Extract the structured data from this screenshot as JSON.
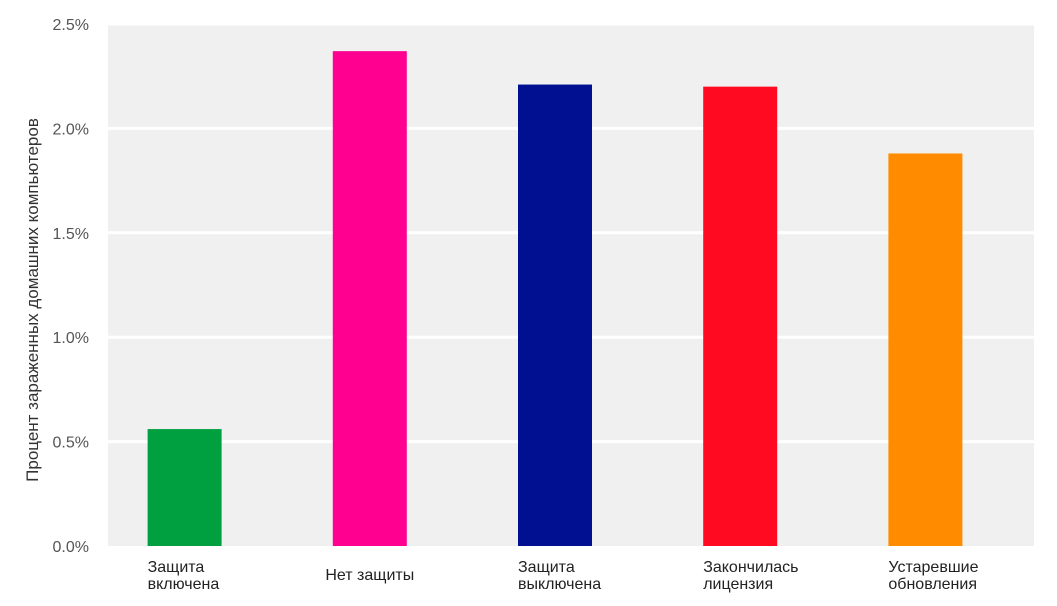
{
  "chart_data": {
    "type": "bar",
    "title": "",
    "xlabel": "",
    "ylabel": "Процент зараженных домашних компьютеров",
    "ylim": [
      0,
      2.5
    ],
    "yticks": [
      "0.0%",
      "0.5%",
      "1.0%",
      "1.5%",
      "2.0%",
      "2.5%"
    ],
    "grid": true,
    "categories": [
      [
        "Защита",
        "включена"
      ],
      [
        "Нет защиты"
      ],
      [
        "Защита",
        "выключена"
      ],
      [
        "Закончилась",
        "лицензия"
      ],
      [
        "Устаревшие",
        "обновления"
      ]
    ],
    "values": [
      0.56,
      2.37,
      2.21,
      2.2,
      1.88
    ],
    "colors": [
      "#00a040",
      "#ff0090",
      "#001090",
      "#ff0a20",
      "#ff8c00"
    ],
    "background": "#f0f0f0",
    "gridline_color": "#ffffff"
  }
}
